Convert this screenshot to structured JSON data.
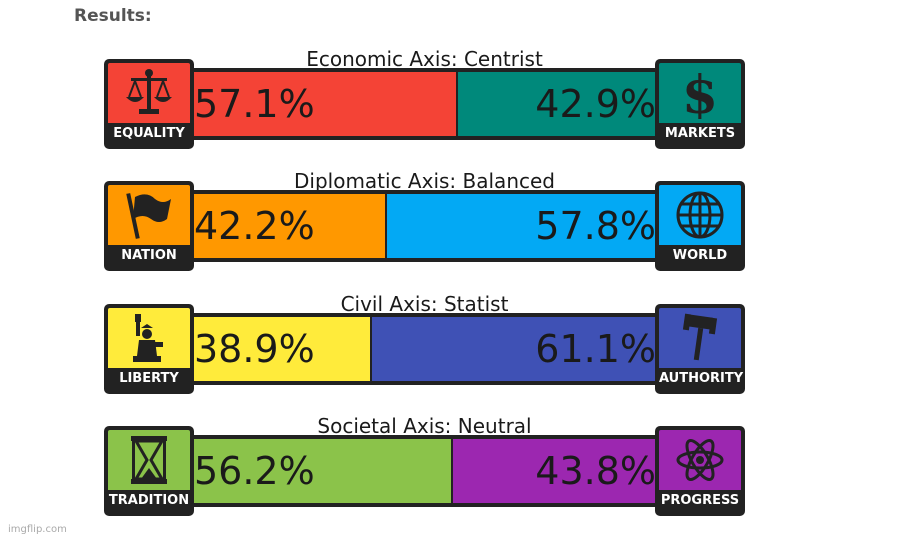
{
  "page": {
    "heading": "Results:",
    "watermark": "imgflip.com"
  },
  "axes": [
    {
      "title": "Economic Axis: Centrist",
      "left": {
        "label": "EQUALITY",
        "percent_text": "57.1%",
        "value": 57.1,
        "color": "#f44336",
        "icon": "scales-icon"
      },
      "right": {
        "label": "MARKETS",
        "percent_text": "42.9%",
        "value": 42.9,
        "color": "#00897b",
        "icon": "dollar-icon"
      }
    },
    {
      "title": "Diplomatic Axis: Balanced",
      "left": {
        "label": "NATION",
        "percent_text": "42.2%",
        "value": 42.2,
        "color": "#ff9800",
        "icon": "flag-icon"
      },
      "right": {
        "label": "WORLD",
        "percent_text": "57.8%",
        "value": 57.8,
        "color": "#03a9f4",
        "icon": "globe-icon"
      }
    },
    {
      "title": "Civil Axis: Statist",
      "left": {
        "label": "LIBERTY",
        "percent_text": "38.9%",
        "value": 38.9,
        "color": "#ffeb3b",
        "icon": "statue-of-liberty-icon"
      },
      "right": {
        "label": "AUTHORITY",
        "percent_text": "61.1%",
        "value": 61.1,
        "color": "#3f51b5",
        "icon": "gavel-icon"
      }
    },
    {
      "title": "Societal Axis: Neutral",
      "left": {
        "label": "TRADITION",
        "percent_text": "56.2%",
        "value": 56.2,
        "color": "#8bc34a",
        "icon": "hourglass-icon"
      },
      "right": {
        "label": "PROGRESS",
        "percent_text": "43.8%",
        "value": 43.8,
        "color": "#9c27b0",
        "icon": "atom-icon"
      }
    }
  ]
}
